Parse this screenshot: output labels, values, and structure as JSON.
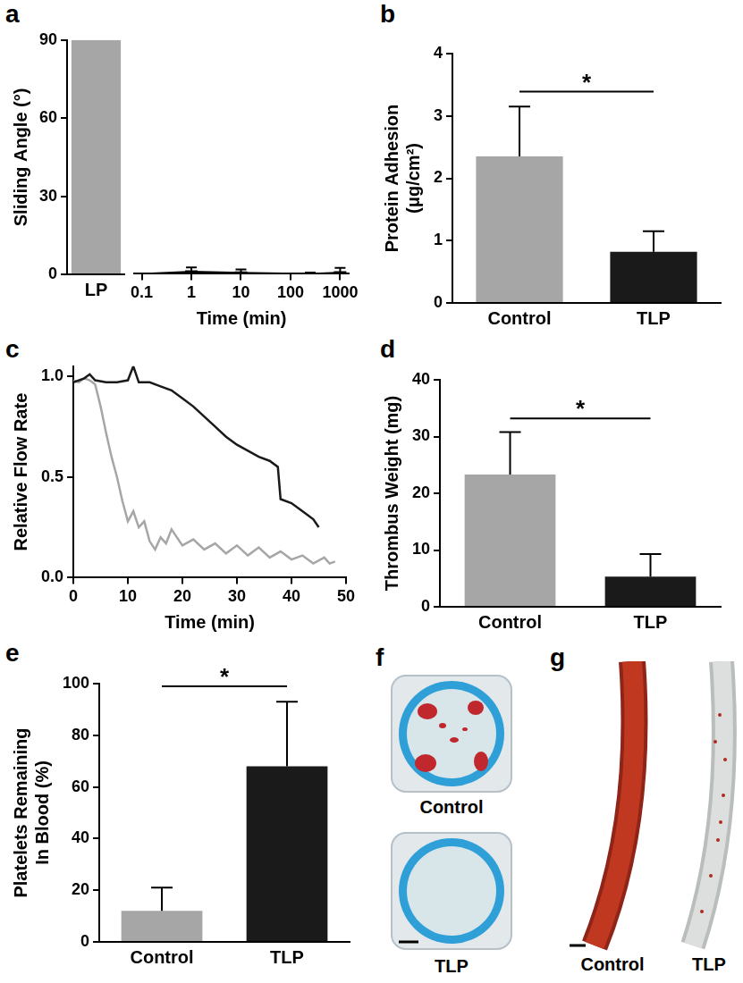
{
  "chart_data": [
    {
      "panel": "a",
      "type": "bar",
      "categories": [
        "LP"
      ],
      "values": [
        90
      ],
      "color": "#a6a6a6",
      "ylim": [
        0,
        90
      ],
      "yticks": [
        0,
        30,
        60,
        90
      ],
      "y_label": "Sliding Angle (°)",
      "grid": false
    },
    {
      "panel": "a",
      "type": "scatter",
      "x": [
        0.1,
        1,
        10,
        250,
        1000
      ],
      "values": [
        0,
        0.8,
        0.4,
        0,
        0.5
      ],
      "errors": [
        0,
        1.6,
        1.3,
        0.5,
        1.8
      ],
      "color": "#000000",
      "marker": "dash",
      "line_style": "solid",
      "log": "x",
      "xlim": [
        0.07,
        1500
      ],
      "xticks": [
        0.1,
        1,
        10,
        100,
        1000
      ],
      "ylim": [
        0,
        90
      ],
      "yticks": [
        0,
        30,
        60,
        90
      ],
      "x_label": "Time (min)",
      "tick_labels": "x",
      "grid": false
    },
    {
      "panel": "b",
      "type": "bar",
      "categories": [
        "Control",
        "TLP"
      ],
      "values": [
        2.35,
        0.82
      ],
      "errors": [
        0.8,
        0.33
      ],
      "colors": [
        "#a6a6a6",
        "#1a1a1a"
      ],
      "ylim": [
        0,
        4
      ],
      "yticks": [
        0,
        1,
        2,
        3,
        4
      ],
      "y_label": [
        "Protein Adhesion",
        "(μg/cm²)"
      ],
      "annotations": [
        {
          "text": "*",
          "between": [
            "Control",
            "TLP"
          ]
        }
      ],
      "grid": false
    },
    {
      "panel": "c",
      "type": "line",
      "series": [
        {
          "color": "#1a1a1a",
          "x": [
            0,
            2,
            3,
            4,
            6,
            8,
            10,
            11,
            12,
            14,
            16,
            18,
            20,
            22,
            24,
            26,
            28,
            30,
            32,
            34,
            36,
            37.5,
            38,
            40,
            42,
            44,
            45
          ],
          "values": [
            0.97,
            0.99,
            1.01,
            0.98,
            0.97,
            0.97,
            0.98,
            1.05,
            0.97,
            0.97,
            0.95,
            0.93,
            0.89,
            0.85,
            0.8,
            0.75,
            0.7,
            0.66,
            0.63,
            0.6,
            0.58,
            0.55,
            0.39,
            0.37,
            0.33,
            0.29,
            0.25
          ]
        },
        {
          "color": "#a6a6a6",
          "x": [
            0,
            1,
            2,
            3,
            4,
            5,
            6,
            7,
            8,
            9,
            10,
            11,
            12,
            13,
            14,
            15,
            16,
            17,
            18,
            20,
            22,
            24,
            26,
            28,
            30,
            32,
            34,
            36,
            38,
            40,
            42,
            44,
            46,
            47,
            48
          ],
          "values": [
            0.98,
            0.97,
            0.99,
            0.98,
            0.96,
            0.85,
            0.72,
            0.6,
            0.5,
            0.38,
            0.28,
            0.33,
            0.25,
            0.28,
            0.18,
            0.14,
            0.2,
            0.17,
            0.24,
            0.16,
            0.19,
            0.14,
            0.17,
            0.12,
            0.16,
            0.11,
            0.15,
            0.1,
            0.13,
            0.09,
            0.11,
            0.07,
            0.1,
            0.07,
            0.08
          ]
        }
      ],
      "xlim": [
        0,
        50
      ],
      "xticks": [
        0,
        10,
        20,
        30,
        40,
        50
      ],
      "ylim": [
        0,
        1.05
      ],
      "yticks": [
        {
          "value": 0,
          "label": "0.0"
        },
        {
          "value": 0.5,
          "label": "0.5"
        },
        {
          "value": 1,
          "label": "1.0"
        }
      ],
      "x_label": "Time (min)",
      "y_label": "Relative Flow Rate",
      "grid": false
    },
    {
      "panel": "d",
      "type": "bar",
      "categories": [
        "Control",
        "TLP"
      ],
      "values": [
        23.3,
        5.3
      ],
      "errors": [
        7.5,
        4.0
      ],
      "colors": [
        "#a6a6a6",
        "#1a1a1a"
      ],
      "ylim": [
        0,
        40
      ],
      "yticks": [
        0,
        10,
        20,
        30,
        40
      ],
      "y_label": "Thrombus Weight (mg)",
      "annotations": [
        {
          "text": "*",
          "between": [
            "Control",
            "TLP"
          ]
        }
      ],
      "grid": false
    },
    {
      "panel": "e",
      "type": "bar",
      "categories": [
        "Control",
        "TLP"
      ],
      "values": [
        12,
        68
      ],
      "errors": [
        9,
        25
      ],
      "colors": [
        "#a6a6a6",
        "#1a1a1a"
      ],
      "ylim": [
        0,
        100
      ],
      "yticks": [
        0,
        20,
        40,
        60,
        80,
        100
      ],
      "y_label": [
        "Platelets Remaining",
        "In Blood (%)"
      ],
      "annotations": [
        {
          "text": "*",
          "between": [
            "Control",
            "TLP"
          ]
        }
      ],
      "grid": false
    }
  ],
  "photos": [
    {
      "panel": "f",
      "captions": [
        "Control",
        "TLP"
      ]
    },
    {
      "panel": "g",
      "captions": [
        "Control",
        "TLP"
      ]
    }
  ]
}
